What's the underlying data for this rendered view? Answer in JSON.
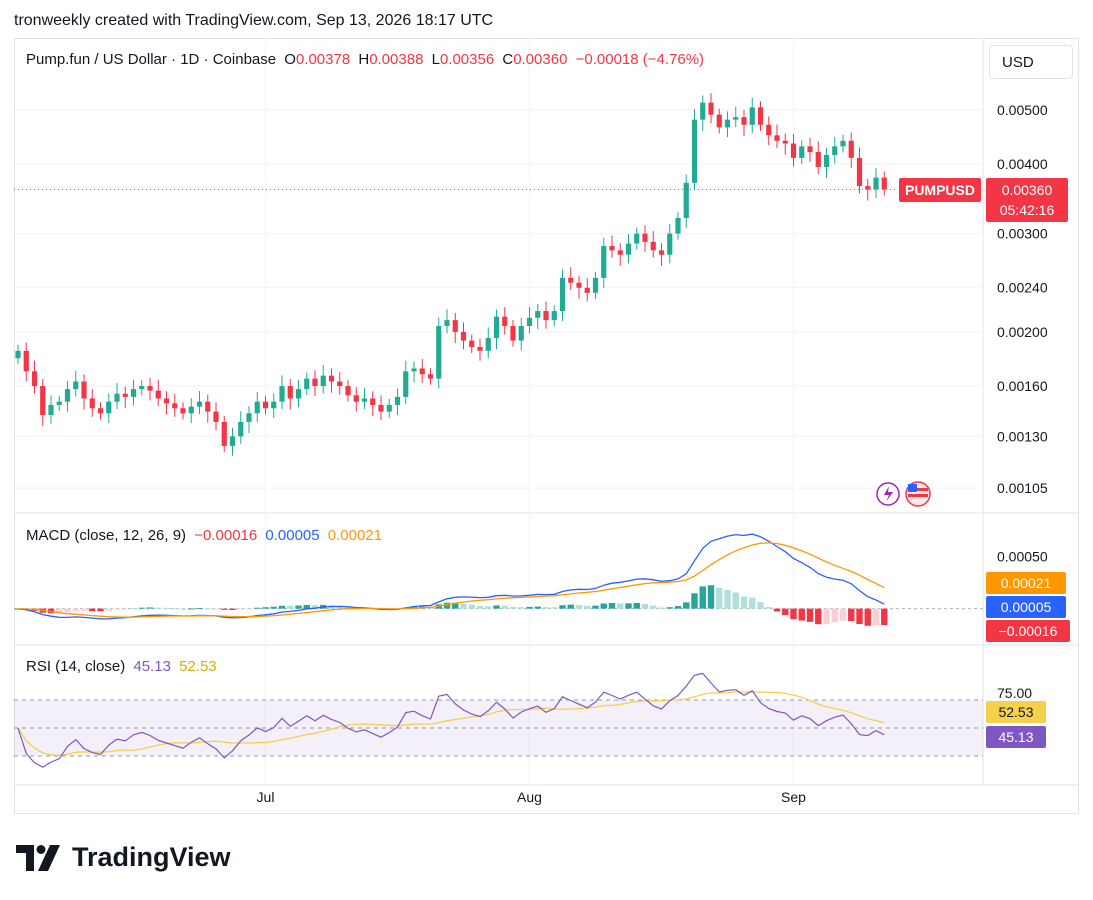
{
  "header": {
    "text": "tronweekly created with TradingView.com, Sep 13, 2026 18:17 UTC"
  },
  "legend": {
    "title": "Pump.fun / US Dollar · 1D · Coinbase",
    "o_label": "O",
    "o_value": "0.00378",
    "h_label": "H",
    "h_value": "0.00388",
    "l_label": "L",
    "l_value": "0.00356",
    "c_label": "C",
    "c_value": "0.00360",
    "change": "−0.00018 (−4.76%)"
  },
  "currency_button": "USD",
  "price_tags": {
    "symbol": "PUMPUSD",
    "price": "0.00360",
    "countdown": "05:42:16"
  },
  "macd": {
    "title": "MACD (close, 12, 26, 9)",
    "hist_value": "−0.00016",
    "macd_value": "0.00005",
    "signal_value": "0.00021",
    "axis_label": "0.00050",
    "tag_signal": "0.00021",
    "tag_macd": "0.00005",
    "tag_hist": "−0.00016"
  },
  "rsi": {
    "title": "RSI (14, close)",
    "rsi_value": "45.13",
    "ma_value": "52.53",
    "axis_label": "75.00",
    "tag_ma": "52.53",
    "tag_rsi": "45.13"
  },
  "footer": {
    "brand": "TradingView"
  },
  "colors": {
    "up": "#22ab94",
    "down": "#f23645",
    "macd": "#2962ff",
    "signal": "#ff9800",
    "rsi": "#7e57c2",
    "rsi_ma": "#f5d04c"
  },
  "chart_data": [
    {
      "type": "candlestick",
      "title": "Pump.fun / US Dollar · 1D · Coinbase",
      "x_labels": [
        "Jul",
        "Aug",
        "Sep"
      ],
      "y_tick_labels": [
        "0.00500",
        "0.00400",
        "0.00300",
        "0.00240",
        "0.00200",
        "0.00160",
        "0.00130",
        "0.00105"
      ],
      "y_ticks": [
        0.005,
        0.004,
        0.003,
        0.0024,
        0.002,
        0.0016,
        0.0013,
        0.00105
      ],
      "scale": "log",
      "ylim": [
        0.001,
        0.0057
      ],
      "close": [
        0.00185,
        0.0017,
        0.0016,
        0.00142,
        0.00148,
        0.0015,
        0.00158,
        0.00163,
        0.00152,
        0.00146,
        0.00143,
        0.0015,
        0.00155,
        0.00153,
        0.00158,
        0.0016,
        0.00157,
        0.00152,
        0.00149,
        0.00146,
        0.00143,
        0.00147,
        0.0015,
        0.00144,
        0.00138,
        0.00125,
        0.0013,
        0.00138,
        0.00143,
        0.0015,
        0.00146,
        0.0015,
        0.0016,
        0.00152,
        0.00158,
        0.00165,
        0.0016,
        0.00167,
        0.00163,
        0.0016,
        0.00154,
        0.0015,
        0.00152,
        0.00148,
        0.00144,
        0.00148,
        0.00153,
        0.0017,
        0.00172,
        0.00168,
        0.00165,
        0.00205,
        0.0021,
        0.002,
        0.00193,
        0.00188,
        0.00185,
        0.00195,
        0.00213,
        0.00205,
        0.00193,
        0.00205,
        0.00212,
        0.00218,
        0.0021,
        0.00218,
        0.0025,
        0.00245,
        0.0024,
        0.00235,
        0.0025,
        0.00285,
        0.0028,
        0.00275,
        0.00288,
        0.003,
        0.0029,
        0.0028,
        0.00275,
        0.003,
        0.0032,
        0.0037,
        0.0048,
        0.00515,
        0.0049,
        0.00465,
        0.0048,
        0.00485,
        0.0047,
        0.00505,
        0.0047,
        0.0045,
        0.0044,
        0.00435,
        0.0041,
        0.0043,
        0.0042,
        0.00395,
        0.00415,
        0.0043,
        0.0044,
        0.0041,
        0.00365,
        0.0036,
        0.00378,
        0.0036
      ]
    },
    {
      "type": "line",
      "title": "MACD (close, 12, 26, 9)",
      "series": [
        {
          "name": "MACD",
          "last": 5e-05
        },
        {
          "name": "Signal",
          "last": 0.00021
        },
        {
          "name": "Histogram",
          "last": -0.00016
        }
      ],
      "ylim": [
        -0.0003,
        0.0008
      ]
    },
    {
      "type": "line",
      "title": "RSI (14, close)",
      "series": [
        {
          "name": "RSI",
          "last": 45.13
        },
        {
          "name": "RSI-based MA",
          "last": 52.53
        }
      ],
      "y_ticks": [
        75
      ],
      "bands": [
        70,
        50,
        30
      ],
      "ylim": [
        20,
        90
      ]
    }
  ]
}
